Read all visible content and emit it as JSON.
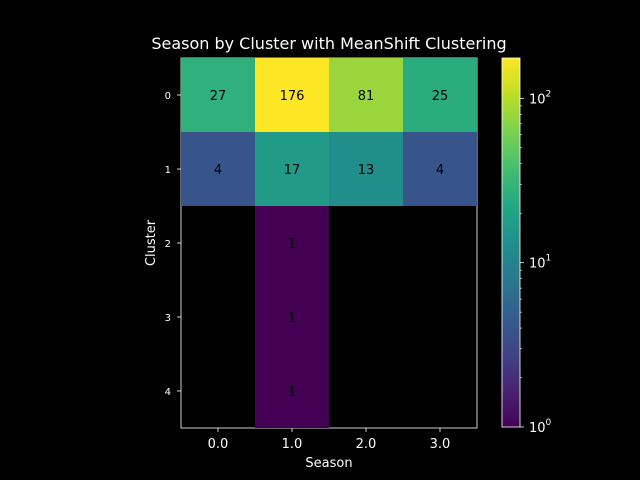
{
  "chart_data": {
    "type": "heatmap",
    "title": "Season by Cluster with MeanShift Clustering",
    "xlabel": "Season",
    "ylabel": "Cluster",
    "x_categories": [
      "0.0",
      "1.0",
      "2.0",
      "3.0"
    ],
    "y_categories": [
      "0",
      "1",
      "2",
      "3",
      "4"
    ],
    "values": [
      [
        27,
        176,
        81,
        25
      ],
      [
        4,
        17,
        13,
        4
      ],
      [
        0,
        1,
        0,
        0
      ],
      [
        0,
        1,
        0,
        0
      ],
      [
        0,
        1,
        0,
        0
      ]
    ],
    "zero_cells_shown_as": "background",
    "colorbar": {
      "scale": "log",
      "range": [
        1,
        176
      ],
      "ticks": [
        {
          "value": 1,
          "label": "10",
          "exp": "0"
        },
        {
          "value": 10,
          "label": "10",
          "exp": "1"
        },
        {
          "value": 100,
          "label": "10",
          "exp": "2"
        }
      ],
      "colormap": "viridis"
    },
    "colors": {
      "background": "#000000",
      "foreground": "#ffffff",
      "cell_text": "#000000"
    }
  }
}
